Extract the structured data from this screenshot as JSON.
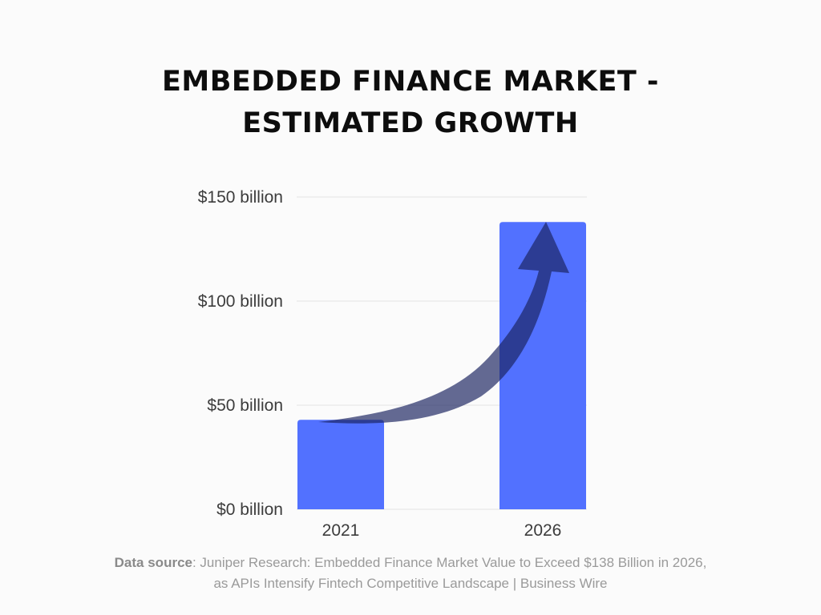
{
  "title_lines": [
    "EMBEDDED FINANCE MARKET -",
    "ESTIMATED GROWTH"
  ],
  "source": {
    "label": "Data source",
    "line1": ": Juniper Research: Embedded Finance Market Value to Exceed $138 Billion in 2026,",
    "line2": "as APIs Intensify Fintech Competitive Landscape | Business Wire"
  },
  "colors": {
    "bar": "#5271ff",
    "arrow": "#1a2460",
    "grid": "#e3e3e3"
  },
  "chart_data": {
    "type": "bar",
    "title": "EMBEDDED FINANCE MARKET - ESTIMATED GROWTH",
    "categories": [
      "2021",
      "2026"
    ],
    "values": [
      43,
      138
    ],
    "unit": "billion USD",
    "ylim": [
      0,
      150
    ],
    "yticks": [
      {
        "value": 0,
        "label": "$0 billion"
      },
      {
        "value": 50,
        "label": "$50 billion"
      },
      {
        "value": 100,
        "label": "$100 billion"
      },
      {
        "value": 150,
        "label": "$150 billion"
      }
    ],
    "grid": true,
    "annotation": "upward-curved-arrow"
  }
}
